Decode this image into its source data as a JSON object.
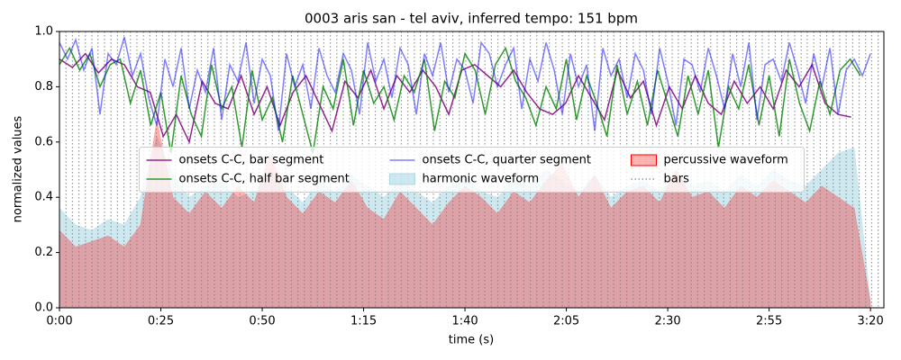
{
  "chart_data": {
    "type": "line",
    "title": "0003 aris san - tel aviv, inferred tempo: 151 bpm",
    "xlabel": "time (s)",
    "ylabel": "normalized values",
    "xlim": [
      0,
      203.3
    ],
    "ylim": [
      0,
      1
    ],
    "xticks": [
      {
        "value": 0,
        "label": "0:00"
      },
      {
        "value": 25,
        "label": "0:25"
      },
      {
        "value": 50,
        "label": "0:50"
      },
      {
        "value": 75,
        "label": "1:15"
      },
      {
        "value": 100,
        "label": "1:40"
      },
      {
        "value": 125,
        "label": "2:05"
      },
      {
        "value": 150,
        "label": "2:30"
      },
      {
        "value": 175,
        "label": "2:55"
      },
      {
        "value": 200,
        "label": "3:20"
      }
    ],
    "yticks": [
      {
        "value": 0,
        "label": "0.0"
      },
      0.2,
      0.4,
      0.6,
      0.8,
      {
        "value": 1,
        "label": "1.0"
      }
    ],
    "legend_loc": "center",
    "legend_columns": 3,
    "series": [
      {
        "name": "onsets C-C, bar segment",
        "style": "line",
        "color": "#800080",
        "opacity": 0.85,
        "x": [
          0,
          3.2,
          6.4,
          9.6,
          12.8,
          16,
          19.2,
          22.4,
          25.6,
          28.8,
          32,
          35.2,
          38.4,
          41.6,
          44.8,
          48,
          51.2,
          54.4,
          57.6,
          60.8,
          64,
          67.2,
          70.4,
          73.6,
          76.8,
          80,
          83.2,
          86.4,
          89.6,
          92.8,
          96,
          99.2,
          102.4,
          105.6,
          108.8,
          112,
          115.2,
          118.4,
          121.6,
          124.8,
          128,
          131.2,
          134.4,
          137.6,
          140.8,
          144,
          147.2,
          150.4,
          153.6,
          156.8,
          160,
          163.2,
          166.4,
          169.6,
          172.8,
          176,
          179.2,
          182.4,
          185.6,
          188.8,
          192,
          195.2
        ],
        "values": [
          0.9,
          0.87,
          0.92,
          0.85,
          0.9,
          0.88,
          0.8,
          0.78,
          0.62,
          0.7,
          0.6,
          0.82,
          0.74,
          0.72,
          0.84,
          0.7,
          0.8,
          0.66,
          0.78,
          0.84,
          0.74,
          0.64,
          0.82,
          0.76,
          0.86,
          0.72,
          0.84,
          0.78,
          0.86,
          0.8,
          0.7,
          0.86,
          0.88,
          0.84,
          0.8,
          0.86,
          0.78,
          0.72,
          0.7,
          0.74,
          0.84,
          0.76,
          0.68,
          0.86,
          0.76,
          0.82,
          0.66,
          0.8,
          0.72,
          0.84,
          0.74,
          0.7,
          0.82,
          0.74,
          0.8,
          0.72,
          0.86,
          0.8,
          0.88,
          0.74,
          0.7,
          0.69
        ]
      },
      {
        "name": "onsets C-C, half bar segment",
        "style": "line",
        "color": "#008000",
        "opacity": 0.8,
        "x": [
          0,
          2.5,
          5,
          7.5,
          10,
          12.5,
          15,
          17.5,
          20,
          22.5,
          25,
          27.5,
          30,
          32.5,
          35,
          37.5,
          40,
          42.5,
          45,
          47.5,
          50,
          52.5,
          55,
          57.5,
          60,
          62.5,
          65,
          67.5,
          70,
          72.5,
          75,
          77.5,
          80,
          82.5,
          85,
          87.5,
          90,
          92.5,
          95,
          97.5,
          100,
          102.5,
          105,
          107.5,
          110,
          112.5,
          115,
          117.5,
          120,
          122.5,
          125,
          127.5,
          130,
          132.5,
          135,
          137.5,
          140,
          142.5,
          145,
          147.5,
          150,
          152.5,
          155,
          157.5,
          160,
          162.5,
          165,
          167.5,
          170,
          172.5,
          175,
          177.5,
          180,
          182.5,
          185,
          187.5,
          190,
          192.5,
          195,
          197.5
        ],
        "values": [
          0.88,
          0.94,
          0.86,
          0.92,
          0.8,
          0.88,
          0.9,
          0.74,
          0.86,
          0.66,
          0.78,
          0.56,
          0.84,
          0.7,
          0.62,
          0.88,
          0.72,
          0.8,
          0.58,
          0.86,
          0.68,
          0.76,
          0.6,
          0.84,
          0.7,
          0.56,
          0.8,
          0.72,
          0.9,
          0.66,
          0.86,
          0.74,
          0.8,
          0.68,
          0.84,
          0.78,
          0.9,
          0.64,
          0.82,
          0.76,
          0.92,
          0.86,
          0.7,
          0.88,
          0.94,
          0.82,
          0.76,
          0.66,
          0.8,
          0.72,
          0.9,
          0.68,
          0.84,
          0.74,
          0.62,
          0.88,
          0.7,
          0.82,
          0.66,
          0.86,
          0.74,
          0.62,
          0.84,
          0.7,
          0.86,
          0.58,
          0.8,
          0.72,
          0.88,
          0.66,
          0.84,
          0.62,
          0.9,
          0.74,
          0.64,
          0.82,
          0.7,
          0.86,
          0.9,
          0.84
        ]
      },
      {
        "name": "onsets C-C, quarter segment",
        "style": "line",
        "color": "#0000ff",
        "opacity": 0.5,
        "x": [
          0,
          2,
          4,
          6,
          8,
          10,
          12,
          14,
          16,
          18,
          20,
          22,
          24,
          26,
          28,
          30,
          32,
          34,
          36,
          38,
          40,
          42,
          44,
          46,
          48,
          50,
          52,
          54,
          56,
          58,
          60,
          62,
          64,
          66,
          68,
          70,
          72,
          74,
          76,
          78,
          80,
          82,
          84,
          86,
          88,
          90,
          92,
          94,
          96,
          98,
          100,
          102,
          104,
          106,
          108,
          110,
          112,
          114,
          116,
          118,
          120,
          122,
          124,
          126,
          128,
          130,
          132,
          134,
          136,
          138,
          140,
          142,
          144,
          146,
          148,
          150,
          152,
          154,
          156,
          158,
          160,
          162,
          164,
          166,
          168,
          170,
          172,
          174,
          176,
          178,
          180,
          182,
          184,
          186,
          188,
          190,
          192,
          194,
          196,
          198,
          200
        ],
        "values": [
          0.96,
          0.9,
          0.97,
          0.86,
          0.94,
          0.7,
          0.92,
          0.88,
          0.98,
          0.84,
          0.92,
          0.76,
          0.66,
          0.9,
          0.8,
          0.94,
          0.72,
          0.86,
          0.78,
          0.94,
          0.68,
          0.88,
          0.82,
          0.96,
          0.74,
          0.9,
          0.84,
          0.64,
          0.92,
          0.8,
          0.88,
          0.72,
          0.94,
          0.84,
          0.78,
          0.92,
          0.86,
          0.7,
          0.96,
          0.82,
          0.9,
          0.76,
          0.94,
          0.88,
          0.7,
          0.92,
          0.84,
          0.96,
          0.78,
          0.9,
          0.86,
          0.74,
          0.96,
          0.92,
          0.8,
          0.88,
          0.94,
          0.72,
          0.9,
          0.82,
          0.96,
          0.86,
          0.7,
          0.92,
          0.8,
          0.88,
          0.64,
          0.94,
          0.84,
          0.9,
          0.76,
          0.92,
          0.86,
          0.7,
          0.94,
          0.82,
          0.66,
          0.9,
          0.88,
          0.78,
          0.94,
          0.84,
          0.72,
          0.92,
          0.8,
          0.96,
          0.68,
          0.88,
          0.9,
          0.82,
          0.96,
          0.86,
          0.74,
          0.92,
          0.8,
          0.94,
          0.7,
          0.86,
          0.9,
          0.84,
          0.92
        ]
      },
      {
        "name": "harmonic waveform",
        "style": "area",
        "color": "#add8e6",
        "opacity": 0.6,
        "x": [
          0,
          4,
          8,
          12,
          16,
          20,
          24,
          28,
          32,
          36,
          40,
          44,
          48,
          52,
          56,
          60,
          64,
          68,
          72,
          76,
          80,
          84,
          88,
          92,
          96,
          100,
          104,
          108,
          112,
          116,
          120,
          124,
          128,
          132,
          136,
          140,
          144,
          148,
          152,
          156,
          160,
          164,
          168,
          172,
          176,
          180,
          184,
          188,
          192,
          196,
          200
        ],
        "values": [
          0.36,
          0.3,
          0.28,
          0.32,
          0.3,
          0.4,
          0.62,
          0.48,
          0.4,
          0.44,
          0.46,
          0.4,
          0.42,
          0.5,
          0.44,
          0.38,
          0.46,
          0.42,
          0.48,
          0.44,
          0.4,
          0.46,
          0.42,
          0.38,
          0.44,
          0.48,
          0.42,
          0.4,
          0.46,
          0.44,
          0.5,
          0.46,
          0.42,
          0.48,
          0.4,
          0.44,
          0.46,
          0.42,
          0.48,
          0.44,
          0.46,
          0.42,
          0.48,
          0.44,
          0.5,
          0.46,
          0.44,
          0.5,
          0.56,
          0.58,
          0.02
        ]
      },
      {
        "name": "percussive waveform",
        "style": "area",
        "color": "#ff0000",
        "opacity": 0.3,
        "x": [
          0,
          4,
          8,
          12,
          16,
          20,
          24,
          28,
          32,
          36,
          40,
          44,
          48,
          52,
          56,
          60,
          64,
          68,
          72,
          76,
          80,
          84,
          88,
          92,
          96,
          100,
          104,
          108,
          112,
          116,
          120,
          124,
          128,
          132,
          136,
          140,
          144,
          148,
          152,
          156,
          160,
          164,
          168,
          172,
          176,
          180,
          184,
          188,
          192,
          196,
          200
        ],
        "values": [
          0.28,
          0.22,
          0.24,
          0.26,
          0.22,
          0.3,
          0.68,
          0.4,
          0.34,
          0.42,
          0.36,
          0.44,
          0.38,
          0.56,
          0.4,
          0.34,
          0.42,
          0.38,
          0.46,
          0.36,
          0.32,
          0.42,
          0.36,
          0.3,
          0.38,
          0.44,
          0.4,
          0.34,
          0.42,
          0.38,
          0.46,
          0.52,
          0.4,
          0.48,
          0.36,
          0.42,
          0.44,
          0.38,
          0.5,
          0.4,
          0.42,
          0.36,
          0.44,
          0.4,
          0.46,
          0.42,
          0.38,
          0.44,
          0.4,
          0.36,
          0.02
        ]
      },
      {
        "name": "bars",
        "style": "vlines",
        "color": "#808080",
        "opacity": 0.8,
        "x": [
          0,
          1.6,
          3.2,
          4.8,
          6.4,
          8.0,
          9.5,
          11.1,
          12.7,
          14.3,
          15.9,
          17.5,
          19.1,
          20.7,
          22.3,
          23.9,
          25.4,
          27.0,
          28.6,
          30.2,
          31.8,
          33.4,
          35.0,
          36.6,
          38.2,
          39.8,
          41.3,
          42.9,
          44.5,
          46.1,
          47.7,
          49.3,
          50.9,
          52.5,
          54.1,
          55.7,
          57.2,
          58.8,
          60.4,
          62.0,
          63.6,
          65.2,
          66.8,
          68.4,
          70.0,
          71.6,
          73.1,
          74.7,
          76.3,
          77.9,
          79.5,
          81.1,
          82.7,
          84.3,
          85.9,
          87.5,
          89.0,
          90.6,
          92.2,
          93.8,
          95.4,
          97.0,
          98.6,
          100.2,
          101.8,
          103.4,
          104.9,
          106.5,
          108.1,
          109.7,
          111.3,
          112.9,
          114.5,
          116.1,
          117.7,
          119.3,
          120.8,
          122.4,
          124.0,
          125.6,
          127.2,
          128.8,
          130.4,
          132.0,
          133.6,
          135.2,
          136.7,
          138.3,
          139.9,
          141.5,
          143.1,
          144.7,
          146.3,
          147.9,
          149.5,
          151.1,
          152.6,
          154.2,
          155.8,
          157.4,
          159.0,
          160.6,
          162.2,
          163.8,
          165.4,
          167.0,
          168.5,
          170.1,
          171.7,
          173.3,
          174.9,
          176.5,
          178.1,
          179.7,
          181.3,
          182.9,
          184.4,
          186.0,
          187.6,
          189.2,
          190.8,
          192.4,
          194.0,
          195.6,
          197.2,
          198.8,
          200.3,
          201.9
        ]
      }
    ]
  }
}
